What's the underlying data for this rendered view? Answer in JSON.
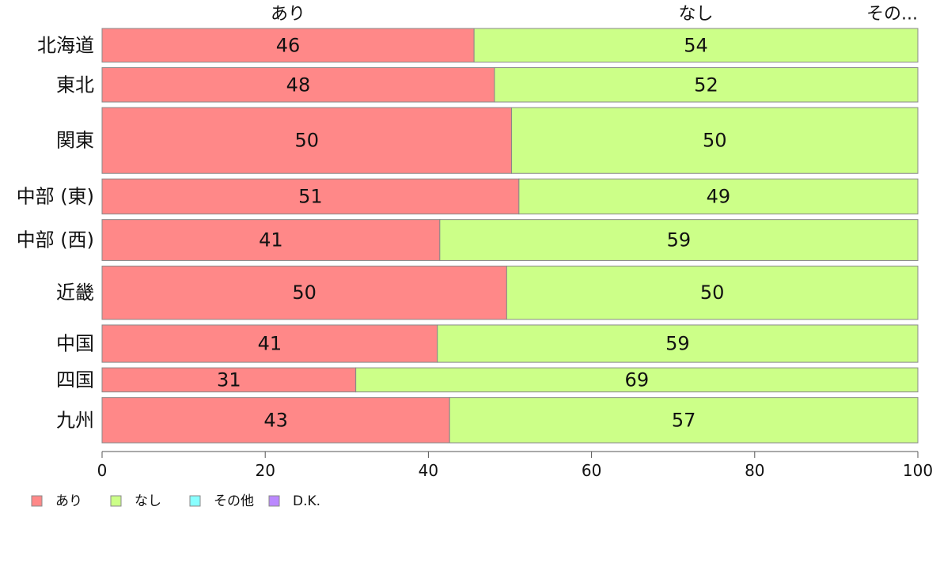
{
  "chart_data": {
    "type": "bar",
    "orientation": "horizontal",
    "stacked": true,
    "percent": true,
    "categories": [
      "北海道",
      "東北",
      "関東",
      "中部 (東)",
      "中部 (西)",
      "近畿",
      "中国",
      "四国",
      "九州"
    ],
    "row_weights": [
      0.46,
      0.47,
      0.9,
      0.48,
      0.56,
      0.73,
      0.51,
      0.33,
      0.62
    ],
    "series": [
      {
        "name": "あり",
        "values": [
          45.6,
          48.1,
          50.2,
          51.1,
          41.4,
          49.6,
          41.1,
          31.1,
          42.6
        ],
        "labels": [
          "46",
          "48",
          "50",
          "51",
          "41",
          "50",
          "41",
          "31",
          "43"
        ]
      },
      {
        "name": "なし",
        "values": [
          54.4,
          51.9,
          49.8,
          48.9,
          58.6,
          50.4,
          58.9,
          68.9,
          57.4
        ],
        "labels": [
          "54",
          "52",
          "50",
          "49",
          "59",
          "50",
          "59",
          "69",
          "57"
        ]
      },
      {
        "name": "その他",
        "values": [
          0,
          0,
          0,
          0,
          0,
          0,
          0,
          0,
          0
        ],
        "labels": []
      },
      {
        "name": "D.K.",
        "values": [
          0,
          0,
          0,
          0,
          0,
          0,
          0,
          0,
          0
        ],
        "labels": []
      }
    ],
    "top_labels": [
      "あり",
      "なし",
      "その..."
    ],
    "x_ticks": [
      "0",
      "20",
      "40",
      "60",
      "80",
      "100"
    ],
    "xlim": [
      0,
      100
    ],
    "grid": false,
    "legend_position": "bottom-left",
    "colors": [
      "#ff8888",
      "#ccff88",
      "#88ffff",
      "#bb88ff"
    ]
  }
}
